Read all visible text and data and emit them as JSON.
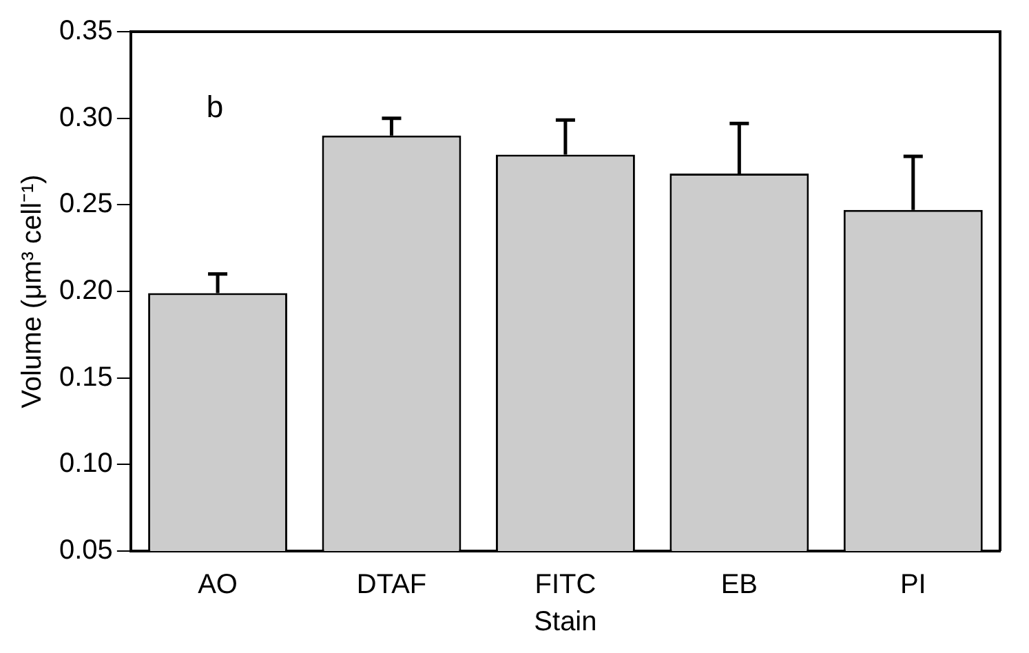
{
  "chart_data": {
    "type": "bar",
    "xlabel": "Stain",
    "ylabel": "Volume (μm³ cell⁻¹)",
    "categories": [
      "AO",
      "DTAF",
      "FITC",
      "EB",
      "PI"
    ],
    "values": [
      0.199,
      0.29,
      0.279,
      0.268,
      0.247
    ],
    "errors": [
      0.011,
      0.01,
      0.02,
      0.029,
      0.031
    ],
    "color": "#cccccc",
    "ylim": [
      0.05,
      0.35
    ],
    "yticks": [
      0.05,
      {
        "value": 0.1,
        "label": "0.10"
      },
      0.15,
      {
        "value": 0.2,
        "label": "0.20"
      },
      0.25,
      {
        "value": 0.3,
        "label": "0.30"
      },
      0.35
    ],
    "annotations": [
      "b"
    ],
    "grid": false,
    "legend": false
  }
}
